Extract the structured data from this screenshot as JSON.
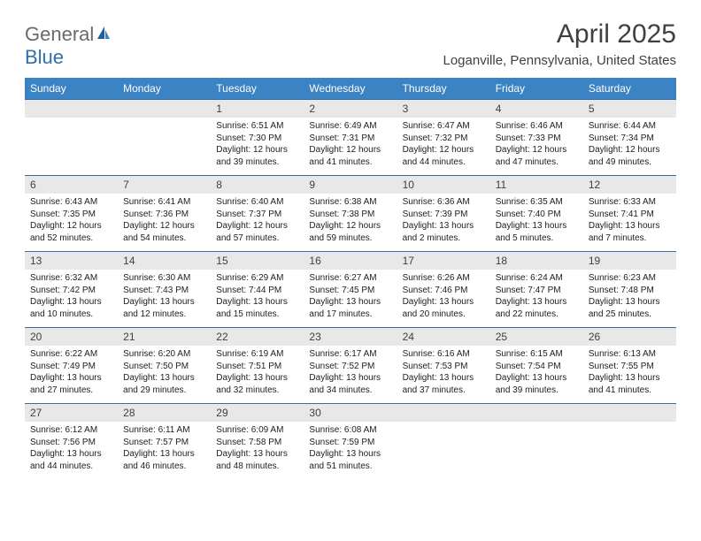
{
  "brand": {
    "part1": "General",
    "part2": "Blue"
  },
  "title": "April 2025",
  "location": "Loganville, Pennsylvania, United States",
  "colors": {
    "header_bg": "#3b83c2",
    "header_text": "#ffffff",
    "daynum_bg": "#e8e8e8",
    "border_top": "#2f6fb0",
    "body_text": "#202020",
    "title_text": "#404040"
  },
  "day_headers": [
    "Sunday",
    "Monday",
    "Tuesday",
    "Wednesday",
    "Thursday",
    "Friday",
    "Saturday"
  ],
  "weeks": [
    [
      null,
      null,
      {
        "n": "1",
        "sr": "Sunrise: 6:51 AM",
        "ss": "Sunset: 7:30 PM",
        "dl": "Daylight: 12 hours and 39 minutes."
      },
      {
        "n": "2",
        "sr": "Sunrise: 6:49 AM",
        "ss": "Sunset: 7:31 PM",
        "dl": "Daylight: 12 hours and 41 minutes."
      },
      {
        "n": "3",
        "sr": "Sunrise: 6:47 AM",
        "ss": "Sunset: 7:32 PM",
        "dl": "Daylight: 12 hours and 44 minutes."
      },
      {
        "n": "4",
        "sr": "Sunrise: 6:46 AM",
        "ss": "Sunset: 7:33 PM",
        "dl": "Daylight: 12 hours and 47 minutes."
      },
      {
        "n": "5",
        "sr": "Sunrise: 6:44 AM",
        "ss": "Sunset: 7:34 PM",
        "dl": "Daylight: 12 hours and 49 minutes."
      }
    ],
    [
      {
        "n": "6",
        "sr": "Sunrise: 6:43 AM",
        "ss": "Sunset: 7:35 PM",
        "dl": "Daylight: 12 hours and 52 minutes."
      },
      {
        "n": "7",
        "sr": "Sunrise: 6:41 AM",
        "ss": "Sunset: 7:36 PM",
        "dl": "Daylight: 12 hours and 54 minutes."
      },
      {
        "n": "8",
        "sr": "Sunrise: 6:40 AM",
        "ss": "Sunset: 7:37 PM",
        "dl": "Daylight: 12 hours and 57 minutes."
      },
      {
        "n": "9",
        "sr": "Sunrise: 6:38 AM",
        "ss": "Sunset: 7:38 PM",
        "dl": "Daylight: 12 hours and 59 minutes."
      },
      {
        "n": "10",
        "sr": "Sunrise: 6:36 AM",
        "ss": "Sunset: 7:39 PM",
        "dl": "Daylight: 13 hours and 2 minutes."
      },
      {
        "n": "11",
        "sr": "Sunrise: 6:35 AM",
        "ss": "Sunset: 7:40 PM",
        "dl": "Daylight: 13 hours and 5 minutes."
      },
      {
        "n": "12",
        "sr": "Sunrise: 6:33 AM",
        "ss": "Sunset: 7:41 PM",
        "dl": "Daylight: 13 hours and 7 minutes."
      }
    ],
    [
      {
        "n": "13",
        "sr": "Sunrise: 6:32 AM",
        "ss": "Sunset: 7:42 PM",
        "dl": "Daylight: 13 hours and 10 minutes."
      },
      {
        "n": "14",
        "sr": "Sunrise: 6:30 AM",
        "ss": "Sunset: 7:43 PM",
        "dl": "Daylight: 13 hours and 12 minutes."
      },
      {
        "n": "15",
        "sr": "Sunrise: 6:29 AM",
        "ss": "Sunset: 7:44 PM",
        "dl": "Daylight: 13 hours and 15 minutes."
      },
      {
        "n": "16",
        "sr": "Sunrise: 6:27 AM",
        "ss": "Sunset: 7:45 PM",
        "dl": "Daylight: 13 hours and 17 minutes."
      },
      {
        "n": "17",
        "sr": "Sunrise: 6:26 AM",
        "ss": "Sunset: 7:46 PM",
        "dl": "Daylight: 13 hours and 20 minutes."
      },
      {
        "n": "18",
        "sr": "Sunrise: 6:24 AM",
        "ss": "Sunset: 7:47 PM",
        "dl": "Daylight: 13 hours and 22 minutes."
      },
      {
        "n": "19",
        "sr": "Sunrise: 6:23 AM",
        "ss": "Sunset: 7:48 PM",
        "dl": "Daylight: 13 hours and 25 minutes."
      }
    ],
    [
      {
        "n": "20",
        "sr": "Sunrise: 6:22 AM",
        "ss": "Sunset: 7:49 PM",
        "dl": "Daylight: 13 hours and 27 minutes."
      },
      {
        "n": "21",
        "sr": "Sunrise: 6:20 AM",
        "ss": "Sunset: 7:50 PM",
        "dl": "Daylight: 13 hours and 29 minutes."
      },
      {
        "n": "22",
        "sr": "Sunrise: 6:19 AM",
        "ss": "Sunset: 7:51 PM",
        "dl": "Daylight: 13 hours and 32 minutes."
      },
      {
        "n": "23",
        "sr": "Sunrise: 6:17 AM",
        "ss": "Sunset: 7:52 PM",
        "dl": "Daylight: 13 hours and 34 minutes."
      },
      {
        "n": "24",
        "sr": "Sunrise: 6:16 AM",
        "ss": "Sunset: 7:53 PM",
        "dl": "Daylight: 13 hours and 37 minutes."
      },
      {
        "n": "25",
        "sr": "Sunrise: 6:15 AM",
        "ss": "Sunset: 7:54 PM",
        "dl": "Daylight: 13 hours and 39 minutes."
      },
      {
        "n": "26",
        "sr": "Sunrise: 6:13 AM",
        "ss": "Sunset: 7:55 PM",
        "dl": "Daylight: 13 hours and 41 minutes."
      }
    ],
    [
      {
        "n": "27",
        "sr": "Sunrise: 6:12 AM",
        "ss": "Sunset: 7:56 PM",
        "dl": "Daylight: 13 hours and 44 minutes."
      },
      {
        "n": "28",
        "sr": "Sunrise: 6:11 AM",
        "ss": "Sunset: 7:57 PM",
        "dl": "Daylight: 13 hours and 46 minutes."
      },
      {
        "n": "29",
        "sr": "Sunrise: 6:09 AM",
        "ss": "Sunset: 7:58 PM",
        "dl": "Daylight: 13 hours and 48 minutes."
      },
      {
        "n": "30",
        "sr": "Sunrise: 6:08 AM",
        "ss": "Sunset: 7:59 PM",
        "dl": "Daylight: 13 hours and 51 minutes."
      },
      null,
      null,
      null
    ]
  ]
}
